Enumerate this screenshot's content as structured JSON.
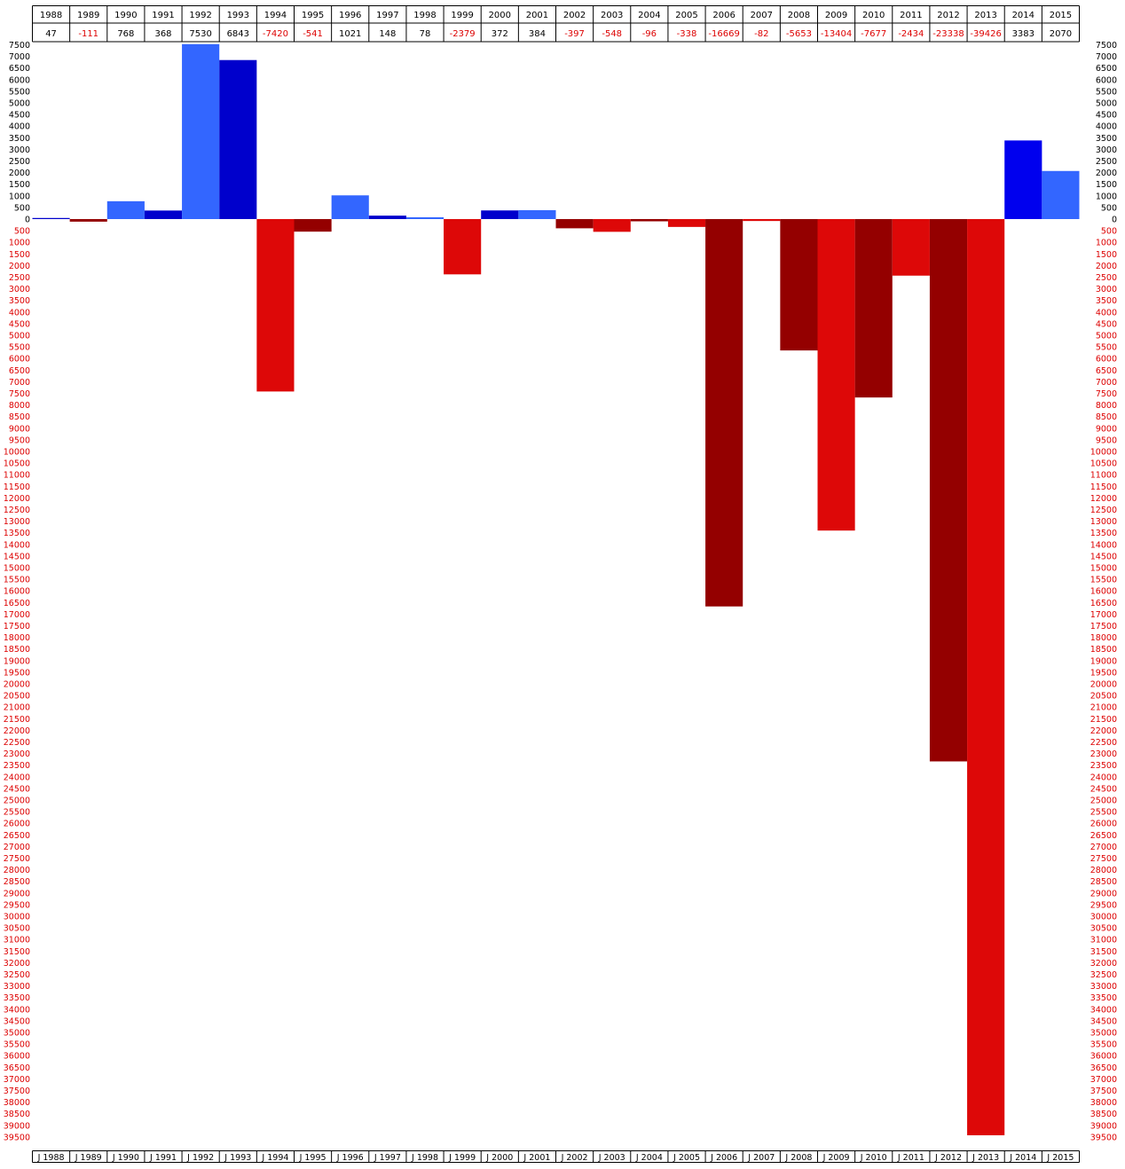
{
  "colors": {
    "positive_dark": "#0000cc",
    "positive_bright": "#0000ee",
    "positive_light": "#3366ff",
    "negative_dark": "#940000",
    "negative_bright": "#dd0808",
    "positive_text": "#000000",
    "negative_text": "#dd0000",
    "grid_line": "#000000"
  },
  "chart_data": {
    "type": "bar",
    "title": "",
    "xlabel": "",
    "ylabel": "",
    "categories": [
      "1988",
      "1989",
      "1990",
      "1991",
      "1992",
      "1993",
      "1994",
      "1995",
      "1996",
      "1997",
      "1998",
      "1999",
      "2000",
      "2001",
      "2002",
      "2003",
      "2004",
      "2005",
      "2006",
      "2007",
      "2008",
      "2009",
      "2010",
      "2011",
      "2012",
      "2013",
      "2014",
      "2015"
    ],
    "bottom_labels": [
      "J 1988",
      "J 1989",
      "J 1990",
      "J 1991",
      "J 1992",
      "J 1993",
      "J 1994",
      "J 1995",
      "J 1996",
      "J 1997",
      "J 1998",
      "J 1999",
      "J 2000",
      "J 2001",
      "J 2002",
      "J 2003",
      "J 2004",
      "J 2005",
      "J 2006",
      "J 2007",
      "J 2008",
      "J 2009",
      "J 2010",
      "J 2011",
      "J 2012",
      "J 2013",
      "J 2014",
      "J 2015"
    ],
    "values": [
      47,
      -111,
      768,
      368,
      7530,
      6843,
      -7420,
      -541,
      1021,
      148,
      78,
      -2379,
      372,
      384,
      -397,
      -548,
      -96,
      -338,
      -16669,
      -82,
      -5653,
      -13404,
      -7677,
      -2434,
      -23338,
      -39426,
      3383,
      2070
    ],
    "bar_colors": [
      "positive_dark",
      "negative_dark",
      "positive_light",
      "positive_dark",
      "positive_light",
      "positive_dark",
      "negative_bright",
      "negative_dark",
      "positive_light",
      "positive_dark",
      "positive_light",
      "negative_bright",
      "positive_dark",
      "positive_light",
      "negative_dark",
      "negative_bright",
      "negative_dark",
      "negative_bright",
      "negative_dark",
      "negative_bright",
      "negative_dark",
      "negative_bright",
      "negative_dark",
      "negative_bright",
      "negative_dark",
      "negative_bright",
      "positive_bright",
      "positive_light"
    ],
    "ylim": [
      -39500,
      7500
    ],
    "ytick_step": 500,
    "ytick_labels_absolute": true,
    "grid": false,
    "legend": "none"
  }
}
